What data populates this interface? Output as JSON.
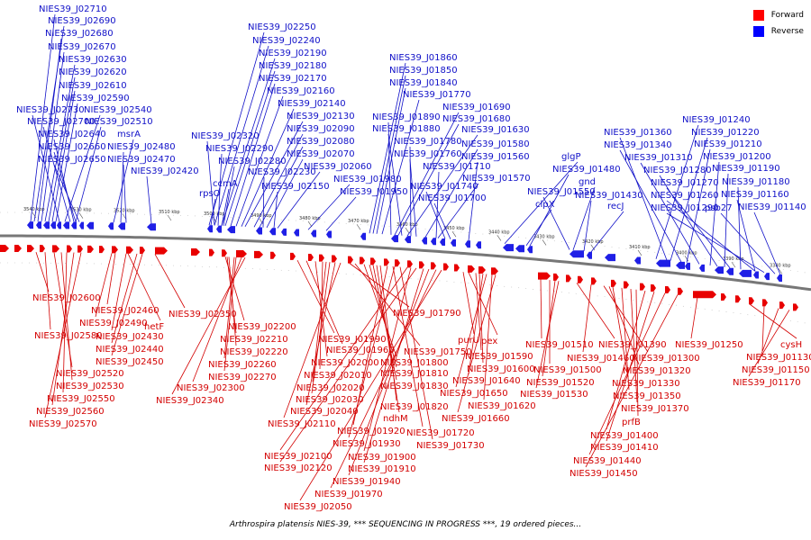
{
  "caption": "Arthrospira platensis NIES-39, *** SEQUENCING IN PROGRESS ***, 19 ordered pieces...",
  "legend": [
    {
      "label": "Forward",
      "color": "#ff0000"
    },
    {
      "label": "Reverse",
      "color": "#0000ff"
    }
  ],
  "colors": {
    "forward": "#e80000",
    "reverse": "#1f1fe6",
    "forward_label": "#d30000",
    "reverse_label": "#1010c8",
    "backbone": "#777777"
  },
  "ticks": [
    "3540 kbp",
    "3530 kbp",
    "3520 kbp",
    "3510 kbp",
    "3500 kbp",
    "3490 kbp",
    "3480 kbp",
    "3470 kbp",
    "3460 kbp",
    "3450 kbp",
    "3440 kbp",
    "3430 kbp",
    "3420 kbp",
    "3410 kbp",
    "3400 kbp",
    "3390 kbp",
    "3380 kbp"
  ],
  "reverse_labels": [
    "NIES39_J02710",
    "NIES39_J02690",
    "NIES39_J02680",
    "NIES39_J02670",
    "NIES39_J02630",
    "NIES39_J02620",
    "NIES39_J02610",
    "NIES39_J02590",
    "NIES39_J02730",
    "NIES39_J02540",
    "NIES39_J02700",
    "NIES39_J02510",
    "NIES39_J02640",
    "msrA",
    "NIES39_J02660",
    "NIES39_J02480",
    "NIES39_J02650",
    "NIES39_J02470",
    "NIES39_J02420",
    "NIES39_J02250",
    "NIES39_J02240",
    "NIES39_J02190",
    "NIES39_J02180",
    "NIES39_J02170",
    "NIES39_J02160",
    "NIES39_J02140",
    "NIES39_J02130",
    "NIES39_J02090",
    "NIES39_J02320",
    "NIES39_J02080",
    "NIES39_J02290",
    "NIES39_J02070",
    "ccmA",
    "NIES39_J02280",
    "NIES39_J02060",
    "NIES39_J02230",
    "rpsO",
    "NIES39_J01980",
    "NIES39_J02150",
    "NIES39_J01950",
    "NIES39_J01860",
    "NIES39_J01850",
    "NIES39_J01840",
    "NIES39_J01770",
    "NIES39_J01690",
    "NIES39_J01890",
    "NIES39_J01680",
    "NIES39_J01880",
    "NIES39_J01630",
    "NIES39_J01780",
    "NIES39_J01580",
    "NIES39_J01760",
    "NIES39_J01560",
    "glgP",
    "NIES39_J01710",
    "NIES39_J01570",
    "NIES39_J01480",
    "NIES39_J01740",
    "NIES39_J01550",
    "gnd",
    "NIES39_J01700",
    "clpX",
    "NIES39_J01430",
    "recJ",
    "NIES39_J01240",
    "NIES39_J01360",
    "NIES39_J01220",
    "NIES39_J01340",
    "NIES39_J01210",
    "NIES39_J01310",
    "NIES39_J01200",
    "NIES39_J01280",
    "NIES39_J01190",
    "NIES39_J01270",
    "NIES39_J01180",
    "NIES39_J01260",
    "NIES39_J01160",
    "NIES39_J01290",
    "psb27",
    "NIES39_J01140"
  ],
  "forward_labels": [
    "NIES39_J02600",
    "NIES39_J02460",
    "NIES39_J02490",
    "hetF",
    "NIES39_J02350",
    "NIES39_J02580",
    "NIES39_J02430",
    "NIES39_J02440",
    "NIES39_J02450",
    "NIES39_J02520",
    "NIES39_J02530",
    "NIES39_J02550",
    "NIES39_J02560",
    "NIES39_J02570",
    "NIES39_J02200",
    "NIES39_J02210",
    "NIES39_J02220",
    "NIES39_J02260",
    "NIES39_J02270",
    "NIES39_J02300",
    "NIES39_J02340",
    "NIES39_J01990",
    "NIES39_J01790",
    "NIES39_J01960",
    "NIES39_J01750",
    "NIES39_J02000",
    "NIES39_J01800",
    "NIES39_J02010",
    "NIES39_J01810",
    "NIES39_J02020",
    "NIES39_J01830",
    "NIES39_J02030",
    "ndhM",
    "NIES39_J01820",
    "NIES39_J02040",
    "NIES39_J02110",
    "NIES39_J01920",
    "NIES39_J01720",
    "NIES39_J01930",
    "NIES39_J01730",
    "NIES39_J02100",
    "NIES39_J01900",
    "NIES39_J02120",
    "NIES39_J01910",
    "NIES39_J01940",
    "NIES39_J01970",
    "NIES39_J02050",
    "purU",
    "pex",
    "NIES39_J01590",
    "NIES39_J01600",
    "NIES39_J01640",
    "NIES39_J01650",
    "NIES39_J01620",
    "NIES39_J01660",
    "NIES39_J01510",
    "NIES39_J01500",
    "NIES39_J01520",
    "NIES39_J01530",
    "NIES39_J01390",
    "NIES39_J01460",
    "NIES39_J01300",
    "NIES39_J01320",
    "NIES39_J01330",
    "NIES39_J01350",
    "NIES39_J01370",
    "prfB",
    "NIES39_J01400",
    "NIES39_J01410",
    "NIES39_J01440",
    "NIES39_J01450",
    "NIES39_J01250",
    "cysH",
    "NIES39_J01130",
    "NIES39_J01150",
    "NIES39_J01170"
  ]
}
